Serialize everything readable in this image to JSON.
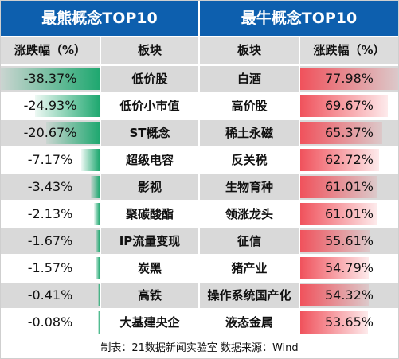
{
  "left": {
    "title": "最熊概念TOP10",
    "col_change": "涨跌幅（%）",
    "col_sector": "板块",
    "rows": [
      {
        "change": "-38.37%",
        "sector": "低价股"
      },
      {
        "change": "-24.93%",
        "sector": "低价小市值"
      },
      {
        "change": "-20.67%",
        "sector": "ST概念"
      },
      {
        "change": "-7.17%",
        "sector": "超级电容"
      },
      {
        "change": "-3.43%",
        "sector": "影视"
      },
      {
        "change": "-2.13%",
        "sector": "聚碳酸酯"
      },
      {
        "change": "-1.67%",
        "sector": "IP流量变现"
      },
      {
        "change": "-1.57%",
        "sector": "炭黑"
      },
      {
        "change": "-0.41%",
        "sector": "高铁"
      },
      {
        "change": "-0.08%",
        "sector": "大基建央企"
      }
    ]
  },
  "right": {
    "title": "最牛概念TOP10",
    "col_sector": "板块",
    "col_change": "涨跌幅（%）",
    "rows": [
      {
        "sector": "白酒",
        "change": "77.98%"
      },
      {
        "sector": "高价股",
        "change": "69.67%"
      },
      {
        "sector": "稀土永磁",
        "change": "65.37%"
      },
      {
        "sector": "反关税",
        "change": "62.72%"
      },
      {
        "sector": "生物育种",
        "change": "61.01%"
      },
      {
        "sector": "领涨龙头",
        "change": "61.01%"
      },
      {
        "sector": "征信",
        "change": "55.61%"
      },
      {
        "sector": "猪产业",
        "change": "54.79%"
      },
      {
        "sector": "操作系统国产化",
        "change": "54.32%"
      },
      {
        "sector": "液态金属",
        "change": "53.65%"
      }
    ]
  },
  "footer": "制表：21数据新闻实验室 数据来源：Wind",
  "colors": {
    "title_bg": "#0d5fae",
    "header_bg": "#dcdcdc",
    "row_alt": "#d9d9d9",
    "neg": "#1fa870",
    "pos": "#f0525c"
  },
  "chart_data": {
    "type": "table",
    "tables": [
      {
        "title": "最熊概念TOP10",
        "columns": [
          "涨跌幅（%）",
          "板块"
        ],
        "categories": [
          "低价股",
          "低价小市值",
          "ST概念",
          "超级电容",
          "影视",
          "聚碳酸酯",
          "IP流量变现",
          "炭黑",
          "高铁",
          "大基建央企"
        ],
        "values": [
          -38.37,
          -24.93,
          -20.67,
          -7.17,
          -3.43,
          -2.13,
          -1.67,
          -1.57,
          -0.41,
          -0.08
        ]
      },
      {
        "title": "最牛概念TOP10",
        "columns": [
          "板块",
          "涨跌幅（%）"
        ],
        "categories": [
          "白酒",
          "高价股",
          "稀土永磁",
          "反关税",
          "生物育种",
          "领涨龙头",
          "征信",
          "猪产业",
          "操作系统国产化",
          "液态金属"
        ],
        "values": [
          77.98,
          69.67,
          65.37,
          62.72,
          61.01,
          61.01,
          55.61,
          54.79,
          54.32,
          53.65
        ]
      }
    ]
  }
}
